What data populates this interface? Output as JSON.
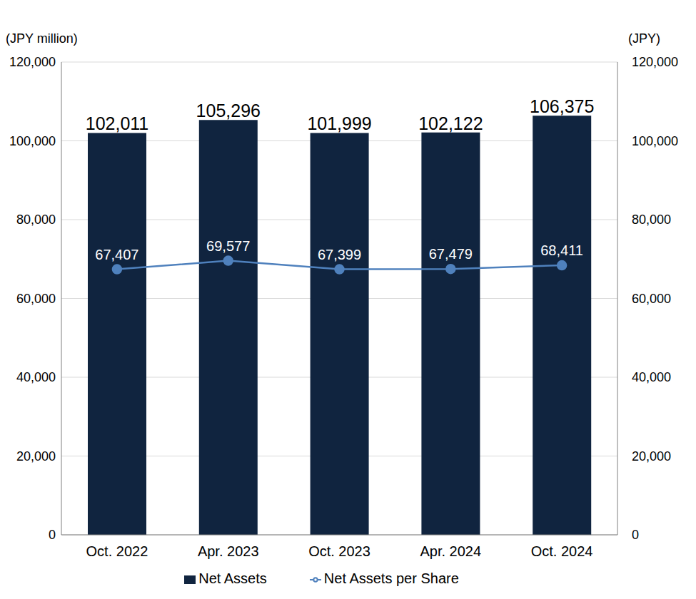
{
  "chart_data": {
    "type": "bar",
    "y_label": "(JPY million)",
    "y2_label": "(JPY)",
    "categories": [
      "Oct. 2022",
      "Apr. 2023",
      "Oct. 2023",
      "Apr. 2024",
      "Oct. 2024"
    ],
    "series": [
      {
        "name": "Net Assets",
        "type": "bar",
        "color": "#10243f",
        "values": [
          102011,
          105296,
          101999,
          102122,
          106375
        ],
        "value_labels": [
          "102,011",
          "105,296",
          "101,999",
          "102,122",
          "106,375"
        ]
      },
      {
        "name": "Net Assets per Share",
        "type": "line",
        "axis": "y2",
        "color": "#4f81bd",
        "marker": "circle",
        "values": [
          67407,
          69577,
          67399,
          67479,
          68411
        ],
        "value_labels": [
          "67,407",
          "69,577",
          "67,399",
          "67,479",
          "68,411"
        ]
      }
    ],
    "ylim": [
      0,
      120000
    ],
    "yticks": [
      0,
      {
        "value": 20000,
        "label": "20,000"
      },
      {
        "value": 40000,
        "label": "40,000"
      },
      {
        "value": 60000,
        "label": "60,000"
      },
      {
        "value": 80000,
        "label": "80,000"
      },
      {
        "value": 100000,
        "label": "100,000"
      },
      {
        "value": 120000,
        "label": "120,000"
      }
    ],
    "y2lim": [
      0,
      120000
    ],
    "y2ticks": [
      0,
      {
        "value": 20000,
        "label": "20,000"
      },
      {
        "value": 40000,
        "label": "40,000"
      },
      {
        "value": 60000,
        "label": "60,000"
      },
      {
        "value": 80000,
        "label": "80,000"
      },
      {
        "value": 100000,
        "label": "100,000"
      },
      {
        "value": 120000,
        "label": "120,000"
      }
    ],
    "grid": true,
    "legend": "bottom",
    "data_labels": true
  }
}
